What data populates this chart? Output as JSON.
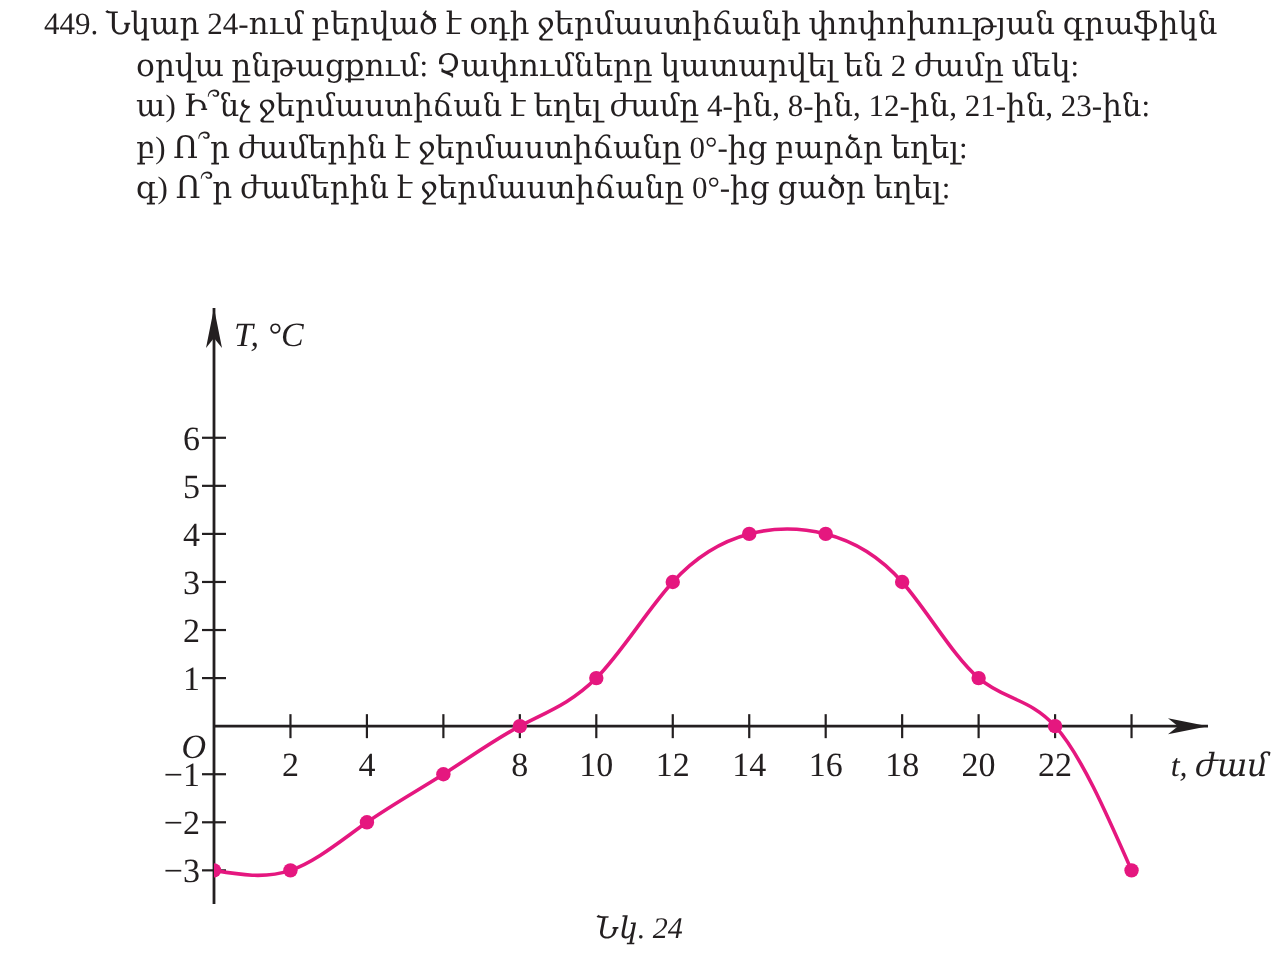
{
  "chart_data": {
    "type": "line",
    "title": "449. Նկար 24-ում բերված է օդի ջերմաստիճանի փոփոխության գրաֆիկն օրվա ընթացքում: Չափումները կատարվել են 2 ժամը մեկ:",
    "annotations": [
      "ա) Ի՞նչ ջերմաստիճան է եղել ժամը 4-ին, 8-ին, 12-ին, 21-ին, 23-ին:",
      "բ) Ո՞ր ժամերին է ջերմաստիճանը 0°-ից բարձր եղել:",
      "գ) Ո՞ր ժամերին է ջերմաստիճանը 0°-ից ցածր եղել:",
      "O",
      "Նկ. 24"
    ],
    "xlabel": "t, ժամ",
    "ylabel": "T, °C",
    "x": [
      0,
      2,
      4,
      6,
      8,
      10,
      12,
      14,
      16,
      18,
      20,
      22,
      24
    ],
    "values": [
      -3,
      -3,
      -2,
      -1,
      0,
      1,
      3,
      4,
      4,
      3,
      1,
      0,
      -3
    ],
    "color": "#e5177f",
    "marker": "circle",
    "line_style": "solid",
    "xlim": [
      0,
      26
    ],
    "ylim": [
      -3.7,
      8.7
    ],
    "xticks": [
      2,
      4,
      {
        "value": 6,
        "label": null
      },
      8,
      10,
      12,
      14,
      16,
      18,
      20,
      22,
      {
        "value": 24,
        "label": null
      }
    ],
    "yticks": [
      -3,
      -2,
      -1,
      1,
      2,
      3,
      4,
      5,
      6
    ]
  }
}
